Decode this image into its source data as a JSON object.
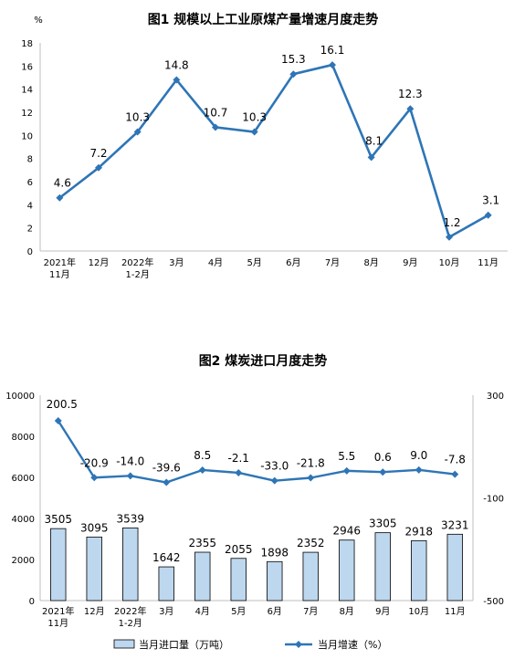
{
  "chart_data": [
    {
      "type": "line",
      "title": "图1  规模以上工业原煤产量增速月度走势",
      "ylabel": "%",
      "ylim": [
        0,
        18
      ],
      "yticks": [
        "0",
        "2",
        "4",
        "6",
        "8",
        "10",
        "12",
        "14",
        "16",
        "18"
      ],
      "categories": [
        [
          "2021年",
          "11月"
        ],
        [
          "12月"
        ],
        [
          "2022年",
          "1-2月"
        ],
        [
          "3月"
        ],
        [
          "4月"
        ],
        [
          "5月"
        ],
        [
          "6月"
        ],
        [
          "7月"
        ],
        [
          "8月"
        ],
        [
          "9月"
        ],
        [
          "10月"
        ],
        [
          "11月"
        ]
      ],
      "series": [
        {
          "values": [
            4.6,
            7.2,
            10.3,
            14.8,
            10.7,
            10.3,
            15.3,
            16.1,
            8.1,
            12.3,
            1.2,
            3.1
          ],
          "labels": [
            "4.6",
            "7.2",
            "10.3",
            "14.8",
            "10.7",
            "10.3",
            "15.3",
            "16.1",
            "8.1",
            "12.3",
            "1.2",
            "3.1"
          ],
          "color": "#2e75b6"
        }
      ],
      "grid": false
    },
    {
      "type": "bar+line",
      "title": "图2  煤炭进口月度走势",
      "ylim_left": [
        0,
        10000
      ],
      "yticks_left": [
        "0",
        "2000",
        "4000",
        "6000",
        "8000",
        "10000"
      ],
      "ylim_right": [
        -500,
        300
      ],
      "yticks_right": [
        "-500",
        "-100",
        "300"
      ],
      "categories": [
        [
          "2021年",
          "11月"
        ],
        [
          "12月"
        ],
        [
          "2022年",
          "1-2月"
        ],
        [
          "3月"
        ],
        [
          "4月"
        ],
        [
          "5月"
        ],
        [
          "6月"
        ],
        [
          "7月"
        ],
        [
          "8月"
        ],
        [
          "9月"
        ],
        [
          "10月"
        ],
        [
          "11月"
        ]
      ],
      "series": [
        {
          "name": "当月进口量（万吨）",
          "type": "bar",
          "axis": "left",
          "values": [
            3505,
            3095,
            3539,
            1642,
            2355,
            2055,
            1898,
            2352,
            2946,
            3305,
            2918,
            3231
          ],
          "labels": [
            "3505",
            "3095",
            "3539",
            "1642",
            "2355",
            "2055",
            "1898",
            "2352",
            "2946",
            "3305",
            "2918",
            "3231"
          ],
          "color": "#bdd7ee",
          "border": "#000000"
        },
        {
          "name": "当月增速（%）",
          "type": "line",
          "axis": "right",
          "values": [
            200.5,
            -20.9,
            -14.0,
            -39.6,
            8.5,
            -2.1,
            -33.0,
            -21.8,
            5.5,
            0.6,
            9.0,
            -7.8
          ],
          "labels": [
            "200.5",
            "-20.9",
            "-14.0",
            "-39.6",
            "8.5",
            "-2.1",
            "-33.0",
            "-21.8",
            "5.5",
            "0.6",
            "9.0",
            "-7.8"
          ],
          "color": "#2e75b6"
        }
      ],
      "legend": "bottom",
      "grid": false
    }
  ]
}
